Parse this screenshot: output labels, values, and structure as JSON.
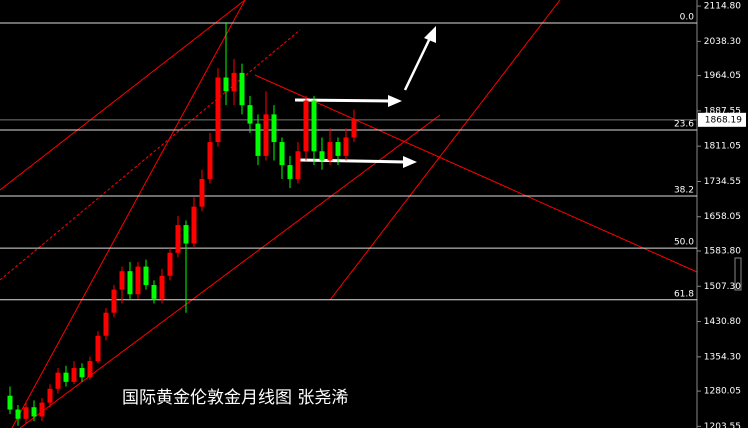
{
  "chart_data": {
    "type": "candlestick",
    "title": "国际黄金伦敦金月线图  张尧浠",
    "up_color": "#ff0000",
    "down_color": "#00ff00",
    "open": [
      1270,
      1240,
      1220,
      1245,
      1225,
      1255,
      1285,
      1320,
      1300,
      1330,
      1310,
      1345,
      1400,
      1450,
      1500,
      1540,
      1490,
      1550,
      1510,
      1480,
      1530,
      1580,
      1640,
      1600,
      1680,
      1740,
      1820,
      1960,
      1930,
      1970,
      1900,
      1860,
      1790,
      1880,
      1820,
      1770,
      1740,
      1800,
      1910,
      1800,
      1780,
      1820,
      1790,
      1830
    ],
    "high": [
      1290,
      1250,
      1255,
      1260,
      1265,
      1295,
      1330,
      1335,
      1345,
      1340,
      1355,
      1410,
      1460,
      1510,
      1550,
      1560,
      1560,
      1565,
      1520,
      1545,
      1590,
      1660,
      1650,
      1700,
      1760,
      1840,
      1980,
      2080,
      2000,
      1990,
      1920,
      1880,
      1930,
      1900,
      1830,
      1790,
      1820,
      1920,
      1920,
      1830,
      1850,
      1830,
      1850,
      1890
    ],
    "low": [
      1230,
      1205,
      1210,
      1215,
      1215,
      1245,
      1275,
      1290,
      1295,
      1300,
      1305,
      1340,
      1390,
      1440,
      1470,
      1480,
      1480,
      1500,
      1470,
      1470,
      1520,
      1570,
      1450,
      1590,
      1670,
      1730,
      1810,
      1900,
      1900,
      1880,
      1840,
      1770,
      1780,
      1780,
      1740,
      1720,
      1730,
      1780,
      1770,
      1760,
      1770,
      1770,
      1780,
      1820
    ],
    "close": [
      1240,
      1220,
      1245,
      1225,
      1255,
      1285,
      1320,
      1300,
      1330,
      1310,
      1345,
      1400,
      1450,
      1500,
      1540,
      1490,
      1550,
      1510,
      1480,
      1530,
      1580,
      1640,
      1600,
      1680,
      1740,
      1820,
      1960,
      1930,
      1970,
      1900,
      1860,
      1790,
      1880,
      1820,
      1770,
      1740,
      1800,
      1910,
      1800,
      1780,
      1820,
      1790,
      1830,
      1868.19
    ],
    "ylim": [
      1200,
      2128
    ],
    "yticks": [
      {
        "value": 2114.8,
        "label": "2114.80"
      },
      {
        "value": 2038.3,
        "label": "2038.30"
      },
      {
        "value": 1964.05,
        "label": "1964.05"
      },
      {
        "value": 1887.55,
        "label": "1887.55"
      },
      {
        "value": 1811.05,
        "label": "1811.05"
      },
      {
        "value": 1734.55,
        "label": "1734.55"
      },
      {
        "value": 1658.05,
        "label": "1658.05"
      },
      {
        "value": 1583.8,
        "label": "1583.80"
      },
      {
        "value": 1507.3,
        "label": "1507.30"
      },
      {
        "value": 1430.8,
        "label": "1430.80"
      },
      {
        "value": 1354.3,
        "label": "1354.30"
      },
      {
        "value": 1280.05,
        "label": "1280.05"
      },
      {
        "value": 1203.55,
        "label": "1203.55"
      }
    ],
    "fib_levels": [
      {
        "value": 2078,
        "label": "0.0"
      },
      {
        "value": 1846,
        "label": "23.6"
      },
      {
        "value": 1703,
        "label": "38.2"
      },
      {
        "value": 1590,
        "label": "50.0"
      },
      {
        "value": 1478,
        "label": "61.8"
      }
    ]
  }
}
